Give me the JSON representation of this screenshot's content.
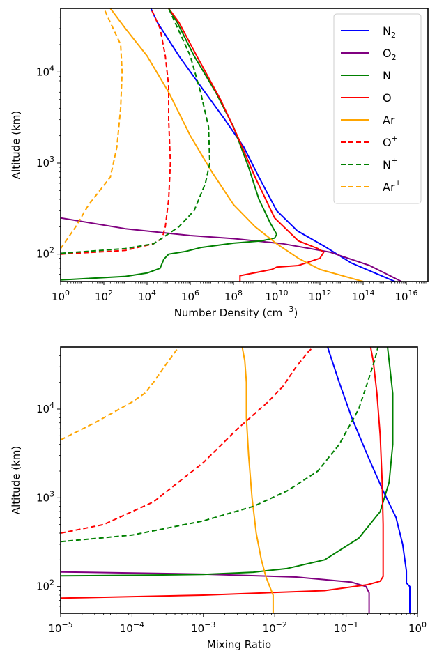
{
  "chart_data": [
    {
      "type": "line",
      "xlabel": "Number Density (cm",
      "xlabel_sup": "−3",
      "xlabel_suffix": ")",
      "ylabel": "Altitude (km)",
      "xscale": "log",
      "yscale": "log",
      "xlim": [
        1,
        1e+17
      ],
      "ylim": [
        50,
        50000
      ],
      "legend_position": "top-right",
      "x_ticks": [
        {
          "base": "10",
          "exp": "0",
          "value": 1
        },
        {
          "base": "10",
          "exp": "2",
          "value": 100
        },
        {
          "base": "10",
          "exp": "4",
          "value": 10000
        },
        {
          "base": "10",
          "exp": "6",
          "value": 1000000
        },
        {
          "base": "10",
          "exp": "8",
          "value": 100000000
        },
        {
          "base": "10",
          "exp": "10",
          "value": 10000000000
        },
        {
          "base": "10",
          "exp": "12",
          "value": 1000000000000
        },
        {
          "base": "10",
          "exp": "14",
          "value": 100000000000000
        },
        {
          "base": "10",
          "exp": "16",
          "value": 10000000000000000
        }
      ],
      "y_ticks": [
        {
          "base": "10",
          "exp": "2",
          "value": 100
        },
        {
          "base": "10",
          "exp": "3",
          "value": 1000
        },
        {
          "base": "10",
          "exp": "4",
          "value": 10000
        }
      ],
      "series": [
        {
          "name": "N",
          "sub": "2",
          "sup": "",
          "color": "#0000ff",
          "dash": false,
          "points": [
            [
              3000000000000000.0,
              50
            ],
            [
              28000000000000.0,
              80
            ],
            [
              1800000000000.0,
              120
            ],
            [
              90000000000.0,
              180
            ],
            [
              10000000000.0,
              300
            ],
            [
              1500000000.0,
              700
            ],
            [
              300000000.0,
              1500
            ],
            [
              40000000.0,
              3000
            ],
            [
              3000000.0,
              7000
            ],
            [
              300000.0,
              15000
            ],
            [
              30000.0,
              35000
            ],
            [
              15000.0,
              50000
            ]
          ]
        },
        {
          "name": "O",
          "sub": "2",
          "sup": "",
          "color": "#800080",
          "dash": false,
          "points": [
            [
              6000000000000000.0,
              50
            ],
            [
              200000000000000.0,
              75
            ],
            [
              3000000000000.0,
              105
            ],
            [
              20000000000.0,
              130
            ],
            [
              100000000.0,
              148
            ],
            [
              1000000.0,
              160
            ],
            [
              1000.0,
              190
            ],
            [
              1,
              250
            ]
          ]
        },
        {
          "name": "N",
          "sub": "",
          "sup": "",
          "color": "#008000",
          "dash": false,
          "points": [
            [
              1,
              52
            ],
            [
              1000.0,
              57
            ],
            [
              10000.0,
              62
            ],
            [
              40000.0,
              70
            ],
            [
              60000.0,
              88
            ],
            [
              100000.0,
              100
            ],
            [
              600000.0,
              107
            ],
            [
              3000000.0,
              118
            ],
            [
              100000000.0,
              132
            ],
            [
              2000000000.0,
              140
            ],
            [
              8000000000.0,
              150
            ],
            [
              10000000000.0,
              165
            ],
            [
              5000000000.0,
              220
            ],
            [
              1500000000.0,
              400
            ],
            [
              500000000.0,
              900
            ],
            [
              100000000.0,
              2500
            ],
            [
              15000000.0,
              6000
            ],
            [
              1500000.0,
              15000
            ],
            [
              250000.0,
              35000
            ],
            [
              100000.0,
              50000
            ]
          ]
        },
        {
          "name": "O",
          "sub": "",
          "sup": "",
          "color": "#ff0000",
          "dash": false,
          "points": [
            [
              200000000.0,
              50
            ],
            [
              200000000.0,
              58
            ],
            [
              6000000000.0,
              68
            ],
            [
              10000000000.0,
              72
            ],
            [
              100000000000.0,
              75
            ],
            [
              1000000000000.0,
              90
            ],
            [
              1500000000000.0,
              105
            ],
            [
              800000000000.0,
              115
            ],
            [
              100000000000.0,
              140
            ],
            [
              8000000000.0,
              250
            ],
            [
              1000000000.0,
              700
            ],
            [
              150000000.0,
              2000
            ],
            [
              25000000.0,
              5000
            ],
            [
              2000000.0,
              15000
            ],
            [
              300000.0,
              35000
            ],
            [
              100000.0,
              50000
            ]
          ]
        },
        {
          "name": "Ar",
          "sub": "",
          "sup": "",
          "color": "#ffa500",
          "dash": false,
          "points": [
            [
              100000000000000.0,
              50
            ],
            [
              1000000000000.0,
              68
            ],
            [
              100000000000.0,
              90
            ],
            [
              10000000000.0,
              130
            ],
            [
              1000000000.0,
              200
            ],
            [
              100000000.0,
              350
            ],
            [
              10000000.0,
              800
            ],
            [
              1000000.0,
              2000
            ],
            [
              100000.0,
              6000
            ],
            [
              10000.0,
              15000
            ],
            [
              1000.0,
              30000
            ],
            [
              200,
              50000
            ]
          ]
        },
        {
          "name": "O",
          "sub": "",
          "sup": "+",
          "color": "#ff0000",
          "dash": true,
          "points": [
            [
              1,
              100
            ],
            [
              1000.0,
              110
            ],
            [
              20000.0,
              130
            ],
            [
              50000.0,
              150
            ],
            [
              70000.0,
              200
            ],
            [
              100000.0,
              400
            ],
            [
              120000.0,
              1000
            ],
            [
              100000.0,
              3000
            ],
            [
              100000.0,
              7000
            ],
            [
              70000.0,
              15000
            ],
            [
              40000.0,
              30000
            ],
            [
              15000.0,
              50000
            ]
          ]
        },
        {
          "name": "N",
          "sub": "",
          "sup": "+",
          "color": "#008000",
          "dash": true,
          "points": [
            [
              1,
              102
            ],
            [
              1000.0,
              115
            ],
            [
              20000.0,
              130
            ],
            [
              50000.0,
              150
            ],
            [
              300000.0,
              200
            ],
            [
              1500000.0,
              300
            ],
            [
              5000000.0,
              600
            ],
            [
              8000000.0,
              1000
            ],
            [
              7000000.0,
              2500
            ],
            [
              3000000.0,
              6000
            ],
            [
              1000000.0,
              15000
            ],
            [
              100000.0,
              50000
            ]
          ]
        },
        {
          "name": "Ar",
          "sub": "",
          "sup": "+",
          "color": "#ffa500",
          "dash": true,
          "points": [
            [
              1,
              115
            ],
            [
              5,
              200
            ],
            [
              20,
              350
            ],
            [
              200,
              700
            ],
            [
              400,
              1500
            ],
            [
              600,
              4000
            ],
            [
              700,
              10000
            ],
            [
              600,
              20000
            ],
            [
              200,
              35000
            ],
            [
              100,
              50000
            ]
          ]
        }
      ]
    },
    {
      "type": "line",
      "xlabel": "Mixing Ratio",
      "ylabel": "Altitude (km)",
      "xscale": "log",
      "yscale": "log",
      "xlim": [
        1e-05,
        1
      ],
      "ylim": [
        50,
        50000
      ],
      "x_ticks": [
        {
          "base": "10",
          "exp": "−5",
          "value": 1e-05
        },
        {
          "base": "10",
          "exp": "−4",
          "value": 0.0001
        },
        {
          "base": "10",
          "exp": "−3",
          "value": 0.001
        },
        {
          "base": "10",
          "exp": "−2",
          "value": 0.01
        },
        {
          "base": "10",
          "exp": "−1",
          "value": 0.1
        },
        {
          "base": "10",
          "exp": "0",
          "value": 1
        }
      ],
      "y_ticks": [
        {
          "base": "10",
          "exp": "2",
          "value": 100
        },
        {
          "base": "10",
          "exp": "3",
          "value": 1000
        },
        {
          "base": "10",
          "exp": "4",
          "value": 10000
        }
      ],
      "series": [
        {
          "name": "N2",
          "color": "#0000ff",
          "dash": false,
          "points": [
            [
              0.78,
              50
            ],
            [
              0.78,
              100
            ],
            [
              0.7,
              110
            ],
            [
              0.7,
              150
            ],
            [
              0.62,
              300
            ],
            [
              0.5,
              600
            ],
            [
              0.33,
              1200
            ],
            [
              0.2,
              3000
            ],
            [
              0.12,
              8000
            ],
            [
              0.08,
              20000
            ],
            [
              0.055,
              50000
            ]
          ]
        },
        {
          "name": "O2",
          "color": "#800080",
          "dash": false,
          "points": [
            [
              0.21,
              50
            ],
            [
              0.21,
              85
            ],
            [
              0.19,
              100
            ],
            [
              0.12,
              112
            ],
            [
              0.02,
              128
            ],
            [
              0.001,
              138
            ],
            [
              2e-05,
              145
            ],
            [
              1e-05,
              146
            ]
          ]
        },
        {
          "name": "N",
          "color": "#008000",
          "dash": false,
          "points": [
            [
              1e-05,
              132
            ],
            [
              0.0001,
              134
            ],
            [
              0.001,
              137
            ],
            [
              0.005,
              145
            ],
            [
              0.015,
              160
            ],
            [
              0.05,
              200
            ],
            [
              0.15,
              350
            ],
            [
              0.3,
              700
            ],
            [
              0.4,
              1500
            ],
            [
              0.45,
              4000
            ],
            [
              0.45,
              15000
            ],
            [
              0.4,
              35000
            ],
            [
              0.38,
              50000
            ]
          ]
        },
        {
          "name": "O",
          "color": "#ff0000",
          "dash": false,
          "points": [
            [
              1e-05,
              74
            ],
            [
              0.001,
              80
            ],
            [
              0.05,
              90
            ],
            [
              0.2,
              105
            ],
            [
              0.3,
              115
            ],
            [
              0.33,
              130
            ],
            [
              0.33,
              500
            ],
            [
              0.32,
              1500
            ],
            [
              0.3,
              5000
            ],
            [
              0.27,
              15000
            ],
            [
              0.24,
              35000
            ],
            [
              0.22,
              50000
            ]
          ]
        },
        {
          "name": "Ar",
          "color": "#ffa500",
          "dash": false,
          "points": [
            [
              0.0095,
              50
            ],
            [
              0.0095,
              80
            ],
            [
              0.0085,
              100
            ],
            [
              0.0075,
              130
            ],
            [
              0.0065,
              200
            ],
            [
              0.0055,
              400
            ],
            [
              0.0048,
              1000
            ],
            [
              0.0043,
              3000
            ],
            [
              0.004,
              8000
            ],
            [
              0.004,
              20000
            ],
            [
              0.0038,
              35000
            ],
            [
              0.0035,
              50000
            ]
          ]
        },
        {
          "name": "O+",
          "color": "#ff0000",
          "dash": true,
          "points": [
            [
              1e-05,
              400
            ],
            [
              4e-05,
              500
            ],
            [
              0.0002,
              900
            ],
            [
              0.001,
              2500
            ],
            [
              0.003,
              6000
            ],
            [
              0.008,
              12000
            ],
            [
              0.013,
              18000
            ],
            [
              0.02,
              30000
            ],
            [
              0.03,
              45000
            ],
            [
              0.035,
              50000
            ]
          ]
        },
        {
          "name": "N+",
          "color": "#008000",
          "dash": true,
          "points": [
            [
              1e-05,
              320
            ],
            [
              0.0001,
              380
            ],
            [
              0.001,
              550
            ],
            [
              0.005,
              800
            ],
            [
              0.015,
              1200
            ],
            [
              0.04,
              2000
            ],
            [
              0.08,
              4000
            ],
            [
              0.15,
              10000
            ],
            [
              0.2,
              20000
            ],
            [
              0.25,
              35000
            ],
            [
              0.28,
              50000
            ]
          ]
        },
        {
          "name": "Ar+",
          "color": "#ffa500",
          "dash": true,
          "points": [
            [
              1e-05,
              4500
            ],
            [
              3e-05,
              7000
            ],
            [
              0.0001,
              12000
            ],
            [
              0.00015,
              15000
            ],
            [
              0.0002,
              20000
            ],
            [
              0.0003,
              32000
            ],
            [
              0.00045,
              50000
            ]
          ]
        }
      ]
    }
  ]
}
